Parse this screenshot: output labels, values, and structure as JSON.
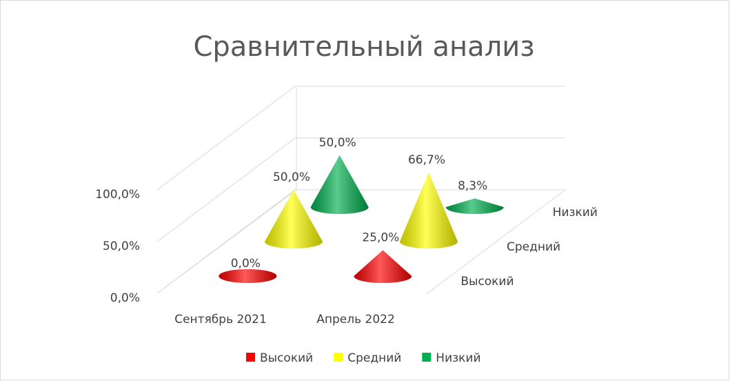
{
  "chart_data": {
    "type": "cone3d",
    "title": "Сравнительный анализ",
    "categories": [
      "Сентябрь 2021",
      "Апрель 2022"
    ],
    "series": [
      {
        "name": "Высокий",
        "color": "#ff0000",
        "values": [
          0,
          25
        ],
        "value_labels": [
          "0,0%",
          "25,0%"
        ]
      },
      {
        "name": "Средний",
        "color": "#ffff00",
        "values": [
          50,
          66.7
        ],
        "value_labels": [
          "50,0%",
          "66,7%"
        ]
      },
      {
        "name": "Низкий",
        "color": "#00b050",
        "values": [
          50,
          8.3
        ],
        "value_labels": [
          "50,0%",
          "8,3%"
        ]
      }
    ],
    "ylim": [
      0,
      100
    ],
    "yticks": [
      {
        "value": 0,
        "label": "0,0%"
      },
      {
        "value": 50,
        "label": "50,0%"
      },
      {
        "value": 100,
        "label": "100,0%"
      }
    ],
    "grid": true,
    "legend": "bottom"
  }
}
